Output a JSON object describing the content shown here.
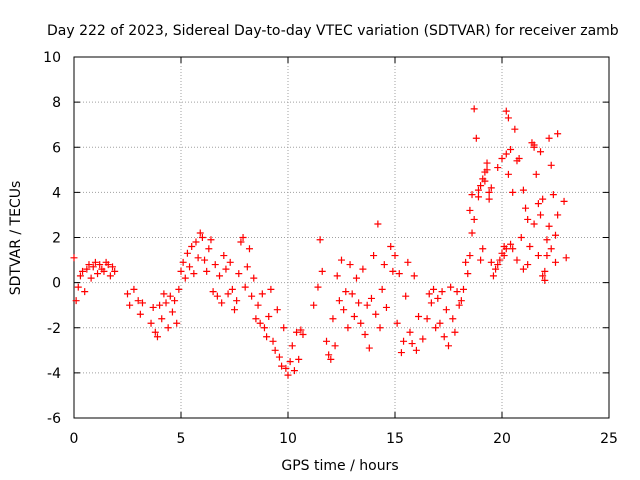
{
  "chart_data": {
    "type": "scatter",
    "title": "Day 222 of 2023, Sidereal Day-to-day VTEC variation (SDTVAR) for receiver zamb",
    "xlabel": "GPS time / hours",
    "ylabel": "SDTVAR / TECUs",
    "xlim": [
      0,
      25
    ],
    "ylim": [
      -6,
      10
    ],
    "xticks": [
      "0",
      "5",
      "10",
      "15",
      "20",
      "25"
    ],
    "yticks": [
      "-6",
      "-4",
      "-2",
      "0",
      "2",
      "4",
      "6",
      "8",
      "10"
    ],
    "grid": true,
    "marker": "+",
    "color": "#ff0000",
    "series": [
      {
        "name": "SDTVAR",
        "x": [
          0.0,
          0.1,
          0.2,
          0.3,
          0.4,
          0.5,
          0.6,
          0.7,
          0.8,
          0.9,
          1.0,
          1.1,
          1.2,
          1.3,
          1.4,
          1.5,
          1.6,
          1.7,
          1.8,
          1.9,
          2.5,
          2.6,
          2.8,
          3.0,
          3.1,
          3.2,
          3.6,
          3.7,
          3.8,
          3.9,
          4.0,
          4.1,
          4.2,
          4.3,
          4.4,
          4.5,
          4.6,
          4.7,
          4.8,
          4.9,
          5.0,
          5.1,
          5.2,
          5.3,
          5.4,
          5.5,
          5.6,
          5.7,
          5.8,
          5.9,
          6.0,
          6.1,
          6.2,
          6.3,
          6.4,
          6.5,
          6.6,
          6.7,
          6.8,
          6.9,
          7.0,
          7.1,
          7.2,
          7.3,
          7.4,
          7.5,
          7.6,
          7.7,
          7.8,
          7.9,
          8.0,
          8.1,
          8.2,
          8.3,
          8.4,
          8.5,
          8.6,
          8.7,
          8.8,
          8.9,
          9.0,
          9.1,
          9.2,
          9.3,
          9.4,
          9.5,
          9.6,
          9.7,
          9.8,
          9.9,
          10.0,
          10.1,
          10.2,
          10.3,
          10.4,
          10.5,
          10.6,
          10.7,
          11.2,
          11.4,
          11.5,
          11.6,
          11.8,
          11.9,
          12.0,
          12.1,
          12.2,
          12.3,
          12.4,
          12.5,
          12.6,
          12.7,
          12.8,
          12.9,
          13.0,
          13.1,
          13.2,
          13.3,
          13.4,
          13.5,
          13.6,
          13.7,
          13.8,
          13.9,
          14.0,
          14.1,
          14.2,
          14.3,
          14.4,
          14.5,
          14.6,
          14.8,
          14.9,
          15.0,
          15.1,
          15.2,
          15.3,
          15.4,
          15.5,
          15.6,
          15.7,
          15.8,
          15.9,
          16.0,
          16.1,
          16.3,
          16.5,
          16.6,
          16.7,
          16.8,
          16.9,
          17.0,
          17.1,
          17.2,
          17.3,
          17.4,
          17.5,
          17.6,
          17.7,
          17.8,
          17.9,
          18.0,
          18.1,
          18.2,
          18.3,
          18.4,
          18.5,
          18.6,
          18.7,
          18.8,
          18.9,
          19.0,
          19.1,
          19.2,
          19.3,
          19.4,
          19.5,
          19.6,
          19.7,
          19.8,
          19.9,
          20.0,
          20.1,
          20.2,
          20.3,
          20.4,
          20.5,
          20.6,
          20.7,
          20.8,
          20.9,
          21.0,
          21.1,
          21.2,
          21.3,
          21.4,
          21.5,
          21.6,
          21.7,
          21.8,
          21.9,
          22.0,
          22.1,
          22.2,
          22.3,
          22.4,
          22.5,
          22.6,
          22.9,
          23.0,
          18.5,
          18.6,
          18.7,
          18.9,
          19.0,
          19.1,
          19.2,
          19.3,
          19.4,
          19.5,
          19.8,
          20.0,
          20.2,
          20.3,
          20.5,
          20.7,
          21.0,
          21.2,
          21.5,
          21.7,
          21.9,
          22.1,
          22.3,
          22.5,
          22.6,
          21.5,
          21.8,
          22.0,
          22.2,
          20.1,
          20.2,
          20.4
        ],
        "y": [
          1.1,
          -0.8,
          -0.2,
          0.3,
          0.5,
          -0.4,
          0.6,
          0.8,
          0.2,
          0.7,
          0.9,
          0.4,
          0.8,
          0.6,
          0.5,
          0.9,
          0.8,
          0.3,
          0.7,
          0.5,
          -0.5,
          -1.0,
          -0.3,
          -0.8,
          -1.4,
          -0.9,
          -1.8,
          -1.1,
          -2.2,
          -2.4,
          -1.0,
          -1.6,
          -0.5,
          -0.9,
          -2.0,
          -0.6,
          -1.3,
          -0.8,
          -1.8,
          -0.3,
          0.5,
          0.9,
          0.2,
          1.3,
          0.7,
          1.6,
          0.4,
          1.8,
          1.1,
          2.2,
          2.0,
          1.0,
          0.5,
          1.5,
          1.9,
          -0.4,
          0.8,
          -0.6,
          0.3,
          -0.9,
          1.2,
          0.6,
          -0.5,
          0.9,
          -0.3,
          -1.2,
          -0.8,
          0.4,
          1.8,
          2.0,
          -0.2,
          0.7,
          1.5,
          -0.6,
          0.2,
          -1.6,
          -1.0,
          -1.8,
          -0.5,
          -2.0,
          -2.4,
          -1.5,
          -0.3,
          -2.6,
          -3.0,
          -1.2,
          -3.3,
          -3.7,
          -2.0,
          -3.8,
          -4.1,
          -3.5,
          -2.8,
          -3.9,
          -2.2,
          -3.4,
          -2.1,
          -2.3,
          -1.0,
          -0.2,
          1.9,
          0.5,
          -2.6,
          -3.2,
          -3.4,
          -1.6,
          -2.8,
          0.3,
          -0.8,
          1.0,
          -1.2,
          -0.4,
          -2.0,
          0.8,
          -0.5,
          -1.5,
          0.2,
          -0.9,
          -1.8,
          0.6,
          -2.3,
          -1.0,
          -2.9,
          -0.7,
          1.2,
          -1.4,
          2.6,
          -2.0,
          -0.3,
          0.8,
          -1.1,
          1.6,
          0.5,
          1.2,
          -1.8,
          0.4,
          -3.1,
          -2.6,
          -0.6,
          0.9,
          -2.2,
          -2.7,
          0.3,
          -3.0,
          -1.5,
          -2.5,
          -1.6,
          -0.5,
          -0.9,
          -0.3,
          -2.0,
          -0.7,
          -1.8,
          -0.4,
          -2.4,
          -1.2,
          -2.8,
          -0.2,
          -1.6,
          -2.2,
          -0.4,
          -1.0,
          -0.8,
          -0.3,
          0.9,
          0.4,
          1.2,
          2.2,
          7.7,
          6.4,
          3.8,
          1.0,
          1.5,
          4.5,
          5.0,
          3.7,
          0.9,
          0.3,
          0.6,
          0.8,
          1.0,
          1.3,
          1.6,
          7.6,
          7.3,
          5.9,
          4.0,
          6.8,
          5.4,
          5.5,
          2.0,
          4.1,
          3.3,
          2.8,
          1.6,
          6.2,
          2.6,
          4.8,
          1.2,
          5.8,
          3.7,
          0.1,
          1.9,
          6.4,
          5.2,
          3.9,
          2.1,
          6.6,
          3.6,
          1.1,
          3.2,
          3.9,
          2.8,
          4.1,
          4.3,
          4.6,
          4.9,
          5.3,
          4.0,
          4.2,
          5.1,
          5.5,
          5.7,
          4.8,
          1.5,
          1.0,
          0.6,
          0.8,
          6.1,
          3.5,
          0.3,
          1.2,
          1.5,
          0.9,
          3.0,
          6.0,
          3.0,
          0.5,
          2.5,
          1.2,
          1.5,
          1.7
        ]
      }
    ]
  }
}
